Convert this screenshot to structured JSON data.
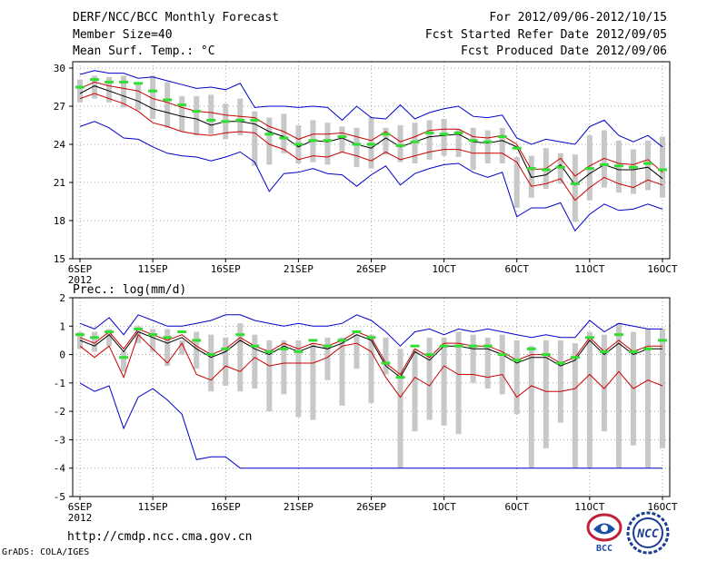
{
  "header": {
    "title": "DERF/NCC/BCC Monthly Forecast",
    "member_size": "Member Size=40",
    "variable_label": "Mean Surf. Temp.: °C",
    "for_period": "For 2012/09/06-2012/10/15",
    "fcst_started": "Fcst Started Refer Date 2012/09/05",
    "fcst_produced": "Fcst Produced Date 2012/09/06"
  },
  "footer": {
    "url": "http://cmdp.ncc.cma.gov.cn",
    "grads": "GrADS: COLA/IGES",
    "logo_bcc": "BCC",
    "logo_ncc": "NCC"
  },
  "colors": {
    "box": "#c8c8c8",
    "median": "#33dd33",
    "mean": "#000000",
    "stddev": "#cc0000",
    "extreme": "#0000cc",
    "grid": "#8c8c8c"
  },
  "chart_data": [
    {
      "type": "line",
      "title": "Mean Surf. Temp.: °C",
      "x_tick_labels": [
        "6SEP",
        "11SEP",
        "16SEP",
        "21SEP",
        "26SEP",
        "1OCT",
        "6OCT",
        "11OCT",
        "16OCT"
      ],
      "x_tick_days": [
        1,
        6,
        11,
        16,
        21,
        26,
        31,
        36,
        41
      ],
      "x_year_label": "2012",
      "xlim": [
        0.5,
        41.5
      ],
      "yticks": [
        15,
        18,
        21,
        24,
        27,
        30
      ],
      "ylim": [
        15,
        30.5
      ],
      "box_low": [
        27.3,
        27.6,
        27.3,
        26.9,
        26.7,
        26.0,
        25.3,
        25.0,
        24.7,
        24.8,
        24.4,
        24.7,
        22.3,
        22.4,
        23.3,
        22.5,
        22.6,
        22.4,
        23.4,
        22.2,
        22.1,
        23.2,
        22.6,
        22.5,
        22.8,
        23.1,
        23.0,
        22.0,
        22.5,
        22.5,
        19.0,
        19.8,
        20.5,
        20.9,
        17.9,
        19.6,
        20.6,
        20.2,
        20.1,
        20.4,
        19.8
      ],
      "box_high": [
        29.1,
        29.4,
        29.3,
        29.4,
        28.7,
        29.4,
        28.9,
        27.8,
        27.8,
        27.9,
        27.2,
        27.6,
        26.6,
        26.1,
        26.4,
        25.5,
        25.9,
        25.7,
        25.4,
        25.3,
        26.1,
        25.3,
        25.5,
        25.7,
        25.9,
        26.0,
        25.2,
        25.3,
        25.1,
        25.3,
        23.0,
        23.1,
        23.7,
        23.3,
        23.2,
        24.7,
        25.1,
        24.3,
        23.6,
        24.3,
        24.6
      ],
      "series": [
        {
          "name": "Median",
          "values": [
            28.5,
            29.1,
            28.9,
            28.9,
            28.8,
            28.2,
            27.5,
            27.1,
            26.6,
            25.9,
            25.8,
            25.9,
            25.9,
            24.8,
            24.5,
            24.0,
            24.3,
            24.3,
            24.6,
            24.0,
            24.0,
            24.8,
            23.9,
            24.2,
            24.9,
            24.8,
            24.9,
            24.3,
            24.2,
            24.6,
            23.7,
            22.1,
            22.0,
            22.2,
            20.9,
            22.1,
            22.4,
            22.3,
            22.2,
            22.5,
            22.0
          ]
        },
        {
          "name": "Mean",
          "values": [
            28.0,
            28.6,
            28.2,
            27.8,
            27.4,
            26.8,
            26.5,
            26.2,
            26.0,
            25.5,
            25.8,
            25.8,
            25.6,
            25.0,
            24.6,
            23.8,
            24.3,
            24.2,
            24.5,
            24.0,
            23.7,
            24.5,
            23.8,
            24.2,
            24.6,
            24.7,
            24.8,
            24.2,
            24.1,
            24.3,
            23.8,
            21.4,
            21.6,
            22.4,
            20.8,
            21.7,
            22.4,
            22.0,
            22.0,
            22.2,
            21.3
          ]
        },
        {
          "name": "Mean+Std",
          "values": [
            28.4,
            28.9,
            28.6,
            28.4,
            28.2,
            27.6,
            27.3,
            26.9,
            26.6,
            26.5,
            26.3,
            26.2,
            26.1,
            25.4,
            25.0,
            24.4,
            24.8,
            24.8,
            24.9,
            24.6,
            24.3,
            25.0,
            24.2,
            24.6,
            25.1,
            25.2,
            25.2,
            24.6,
            24.5,
            24.7,
            24.0,
            22.0,
            22.1,
            22.9,
            21.5,
            22.3,
            22.9,
            22.5,
            22.4,
            22.8,
            21.8
          ]
        },
        {
          "name": "Mean-Std",
          "values": [
            27.6,
            28.0,
            27.6,
            27.2,
            26.6,
            25.7,
            25.4,
            25.0,
            24.8,
            24.7,
            24.9,
            25.0,
            24.9,
            24.0,
            23.6,
            22.8,
            23.1,
            23.0,
            23.4,
            23.1,
            22.7,
            23.4,
            22.8,
            23.1,
            23.4,
            23.6,
            23.6,
            23.3,
            23.3,
            23.3,
            22.6,
            20.7,
            20.9,
            21.3,
            19.6,
            20.6,
            21.4,
            20.9,
            20.6,
            21.2,
            20.8
          ]
        },
        {
          "name": "Max",
          "values": [
            29.5,
            29.8,
            29.6,
            29.6,
            29.2,
            29.3,
            29.0,
            28.7,
            28.4,
            28.5,
            28.3,
            28.8,
            26.9,
            27.0,
            27.0,
            26.9,
            27.0,
            26.9,
            25.9,
            27.0,
            26.1,
            26.0,
            27.1,
            26.0,
            26.5,
            26.8,
            27.0,
            26.2,
            26.1,
            26.3,
            24.5,
            24.0,
            24.4,
            24.2,
            24.0,
            25.4,
            25.9,
            24.7,
            24.2,
            24.7,
            23.8
          ]
        },
        {
          "name": "Min",
          "values": [
            25.4,
            25.8,
            25.3,
            24.5,
            24.4,
            23.8,
            23.3,
            23.1,
            23.0,
            22.7,
            23.0,
            23.4,
            22.6,
            20.3,
            21.7,
            21.8,
            22.1,
            21.7,
            21.6,
            20.7,
            21.6,
            22.3,
            20.8,
            21.7,
            22.1,
            22.4,
            22.5,
            21.8,
            21.4,
            21.8,
            18.3,
            19.0,
            19.0,
            19.4,
            17.2,
            18.5,
            19.3,
            18.8,
            18.9,
            19.3,
            18.9
          ]
        }
      ]
    },
    {
      "type": "line",
      "title": "Prec.: log(mm/d)",
      "x_tick_labels": [
        "6SEP",
        "11SEP",
        "16SEP",
        "21SEP",
        "26SEP",
        "1OCT",
        "6OCT",
        "11OCT",
        "16OCT"
      ],
      "x_tick_days": [
        1,
        6,
        11,
        16,
        21,
        26,
        31,
        36,
        41
      ],
      "x_year_label": "2012",
      "xlim": [
        0.5,
        41.5
      ],
      "yticks": [
        -5,
        -4,
        -3,
        -2,
        -1,
        0,
        1,
        2
      ],
      "ylim": [
        -5,
        2
      ],
      "box_low": [
        0.2,
        0.1,
        0.3,
        -0.6,
        0.4,
        0.1,
        -0.4,
        0.0,
        -0.5,
        -1.3,
        -1.1,
        -1.3,
        -1.2,
        -2.0,
        -1.4,
        -2.2,
        -2.3,
        -0.9,
        -1.8,
        -0.5,
        -1.7,
        -0.7,
        -4.0,
        -2.7,
        -2.3,
        -2.5,
        -2.8,
        -1.0,
        -1.2,
        -1.4,
        -2.1,
        -4.0,
        -3.3,
        -2.4,
        -4.0,
        -4.0,
        -2.7,
        -4.0,
        -3.2,
        -4.0,
        -3.3
      ],
      "box_high": [
        0.8,
        0.8,
        0.9,
        0.1,
        1.0,
        0.9,
        0.9,
        0.5,
        0.8,
        0.7,
        0.6,
        1.1,
        0.7,
        0.5,
        0.5,
        0.5,
        0.4,
        0.6,
        0.6,
        0.7,
        0.7,
        0.6,
        0.2,
        0.2,
        0.6,
        0.6,
        0.8,
        0.7,
        0.6,
        0.7,
        0.5,
        0.3,
        0.5,
        0.5,
        0.4,
        0.8,
        0.7,
        1.1,
        0.8,
        0.9,
        0.9
      ],
      "series": [
        {
          "name": "Median",
          "values": [
            0.7,
            0.6,
            0.8,
            -0.1,
            0.9,
            0.7,
            0.6,
            0.8,
            0.5,
            0.0,
            0.2,
            0.7,
            0.3,
            0.1,
            0.2,
            0.1,
            0.5,
            0.3,
            0.5,
            0.8,
            0.6,
            -0.3,
            -0.8,
            0.3,
            0.0,
            0.3,
            0.3,
            0.3,
            0.3,
            0.0,
            -0.2,
            0.2,
            0.0,
            -0.3,
            -0.1,
            0.6,
            0.1,
            0.7,
            0.1,
            0.2,
            0.5
          ]
        },
        {
          "name": "Mean",
          "values": [
            0.5,
            0.3,
            0.7,
            0.1,
            0.8,
            0.6,
            0.4,
            0.6,
            0.2,
            -0.1,
            0.1,
            0.5,
            0.2,
            0.0,
            0.3,
            0.1,
            0.3,
            0.2,
            0.4,
            0.7,
            0.5,
            -0.4,
            -0.8,
            0.1,
            -0.2,
            0.3,
            0.3,
            0.2,
            0.2,
            0.0,
            -0.3,
            -0.1,
            -0.1,
            -0.4,
            -0.2,
            0.5,
            0.0,
            0.4,
            0.0,
            0.2,
            0.2
          ]
        },
        {
          "name": "Mean+Std",
          "values": [
            0.6,
            0.4,
            0.8,
            0.2,
            0.9,
            0.7,
            0.5,
            0.7,
            0.3,
            0.0,
            0.2,
            0.6,
            0.3,
            0.1,
            0.4,
            0.2,
            0.4,
            0.3,
            0.5,
            0.8,
            0.6,
            -0.3,
            -0.7,
            0.2,
            -0.1,
            0.4,
            0.4,
            0.3,
            0.3,
            0.1,
            -0.2,
            0.0,
            0.0,
            -0.3,
            -0.1,
            0.6,
            0.1,
            0.5,
            0.1,
            0.3,
            0.3
          ]
        },
        {
          "name": "Mean-Std",
          "values": [
            0.3,
            -0.1,
            0.3,
            -0.8,
            0.7,
            0.2,
            -0.3,
            0.4,
            -0.7,
            -0.9,
            -0.4,
            -0.6,
            -0.1,
            -0.4,
            -0.3,
            -0.3,
            -0.3,
            -0.1,
            0.3,
            0.4,
            0.1,
            -0.8,
            -1.5,
            -0.8,
            -1.1,
            -0.4,
            -0.7,
            -0.7,
            -0.8,
            -0.7,
            -1.5,
            -1.1,
            -1.3,
            -1.3,
            -1.2,
            -0.7,
            -1.2,
            -0.6,
            -1.2,
            -0.9,
            -1.1
          ]
        },
        {
          "name": "Max",
          "values": [
            1.1,
            0.9,
            1.3,
            0.7,
            1.4,
            1.2,
            1.0,
            1.0,
            1.1,
            1.2,
            1.4,
            1.4,
            1.2,
            1.1,
            1.0,
            1.1,
            1.0,
            1.0,
            1.1,
            1.4,
            1.2,
            0.8,
            0.3,
            0.8,
            0.9,
            0.7,
            0.9,
            0.8,
            0.9,
            0.8,
            0.7,
            0.6,
            0.7,
            0.6,
            0.6,
            1.2,
            0.8,
            1.1,
            1.0,
            0.9,
            0.9
          ]
        },
        {
          "name": "Min",
          "values": [
            -1.0,
            -1.3,
            -1.1,
            -2.6,
            -1.5,
            -1.2,
            -1.6,
            -2.1,
            -3.7,
            -3.6,
            -3.6,
            -4.0,
            -4.0,
            -4.0,
            -4.0,
            -4.0,
            -4.0,
            -4.0,
            -4.0,
            -4.0,
            -4.0,
            -4.0,
            -4.0,
            -4.0,
            -4.0,
            -4.0,
            -4.0,
            -4.0,
            -4.0,
            -4.0,
            -4.0,
            -4.0,
            -4.0,
            -4.0,
            -4.0,
            -4.0,
            -4.0,
            -4.0,
            -4.0,
            -4.0,
            -4.0
          ]
        }
      ]
    }
  ]
}
